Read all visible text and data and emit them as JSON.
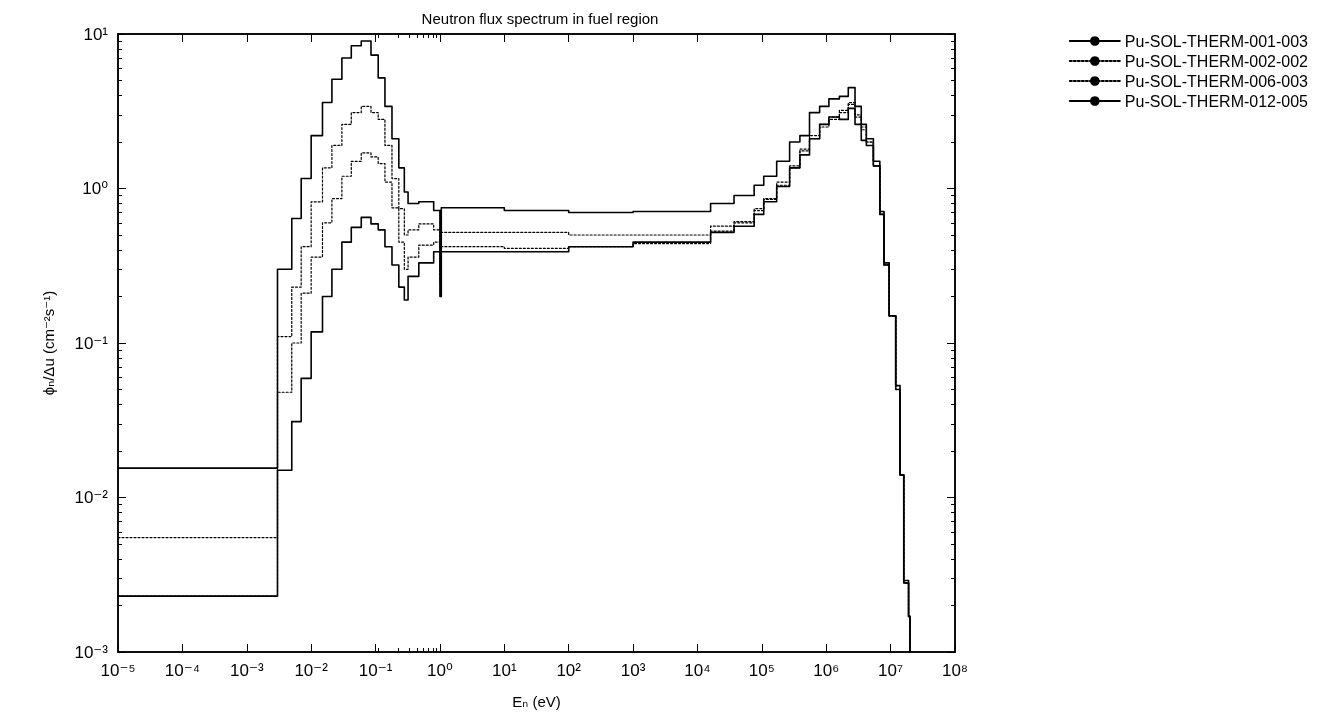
{
  "chart_data": {
    "type": "step",
    "title": "Neutron flux spectrum in fuel region",
    "xlabel": "Eₙ (eV)",
    "ylabel": "ϕₙ/Δu (cm⁻²s⁻¹)",
    "log": "xy",
    "grid": false,
    "legend": "top right",
    "marker": "none",
    "xlim": [
      1e-05,
      100000000
    ],
    "ylim": [
      0.001,
      10
    ],
    "xticks": [
      {
        "value": 1e-05,
        "label": "10⁻⁵"
      },
      {
        "value": 0.0001,
        "label": "10⁻⁴"
      },
      {
        "value": 0.001,
        "label": "10⁻³"
      },
      {
        "value": 0.01,
        "label": "10⁻²"
      },
      {
        "value": 0.1,
        "label": "10⁻¹"
      },
      {
        "value": 1,
        "label": "10⁰"
      },
      {
        "value": 10,
        "label": "10¹"
      },
      {
        "value": 100,
        "label": "10²"
      },
      {
        "value": 1000,
        "label": "10³"
      },
      {
        "value": 10000,
        "label": "10⁴"
      },
      {
        "value": 100000,
        "label": "10⁵"
      },
      {
        "value": 1000000,
        "label": "10⁶"
      },
      {
        "value": 10000000,
        "label": "10⁷"
      },
      {
        "value": 100000000,
        "label": "10⁸"
      }
    ],
    "yticks": [
      {
        "value": 0.001,
        "label": "10⁻³"
      },
      {
        "value": 0.01,
        "label": "10⁻²"
      },
      {
        "value": 0.1,
        "label": "10⁻¹"
      },
      {
        "value": 1,
        "label": "10⁰"
      },
      {
        "value": 10,
        "label": "10¹"
      }
    ],
    "x": [
      1e-05,
      0.003,
      0.005,
      0.007,
      0.01,
      0.015,
      0.021,
      0.03,
      0.042,
      0.06,
      0.085,
      0.11,
      0.14,
      0.18,
      0.23,
      0.28,
      0.32,
      0.47,
      0.8,
      1.0,
      1.05,
      10,
      100,
      1000,
      16000,
      37000,
      76000,
      107000,
      170000,
      270000,
      390000,
      550000,
      790000,
      1100000,
      1600000,
      2200000,
      2800000,
      3500000,
      4200000,
      5400000,
      6800000,
      7900000,
      9500000,
      12000000,
      14000000,
      16000000,
      19000000,
      20000000
    ],
    "series": [
      {
        "name": "Pu-SOL-THERM-001-003",
        "color": "#000000",
        "line_style": "solid",
        "values": [
          0.0155,
          0.3,
          0.64,
          1.16,
          2.2,
          3.6,
          5.1,
          7.0,
          8.4,
          9.0,
          7.3,
          5.2,
          3.4,
          2.1,
          1.36,
          0.95,
          0.8,
          0.82,
          0.72,
          0.4,
          0.75,
          0.72,
          0.7,
          0.71,
          0.8,
          0.9,
          1.05,
          1.2,
          1.5,
          2.0,
          2.2,
          3.1,
          3.4,
          3.8,
          3.95,
          4.5,
          3.4,
          2.6,
          2.1,
          1.5,
          0.71,
          0.33,
          0.15,
          0.053,
          0.014,
          0.0029,
          0.0017,
          0.001
        ]
      },
      {
        "name": "Pu-SOL-THERM-002-002",
        "color": "#000000",
        "line_style": "dotted",
        "values": [
          0.0055,
          0.11,
          0.23,
          0.42,
          0.82,
          1.36,
          1.9,
          2.6,
          3.1,
          3.4,
          3.1,
          2.8,
          1.9,
          1.16,
          0.74,
          0.5,
          0.54,
          0.59,
          0.54,
          0.3,
          0.52,
          0.52,
          0.5,
          0.5,
          0.57,
          0.61,
          0.74,
          0.86,
          1.05,
          1.36,
          1.75,
          2.1,
          2.6,
          2.8,
          3.1,
          3.5,
          2.9,
          2.4,
          2.0,
          1.4,
          0.68,
          0.32,
          0.15,
          0.05,
          0.014,
          0.0028,
          0.0017,
          0.001
        ]
      },
      {
        "name": "Pu-SOL-THERM-006-003",
        "color": "#000000",
        "line_style": "dotted",
        "values": [
          0.0023,
          0.048,
          0.1,
          0.21,
          0.36,
          0.6,
          0.86,
          1.2,
          1.5,
          1.7,
          1.6,
          1.45,
          1.1,
          0.75,
          0.45,
          0.3,
          0.36,
          0.43,
          0.45,
          0.25,
          0.42,
          0.41,
          0.42,
          0.44,
          0.53,
          0.6,
          0.72,
          0.85,
          1.1,
          1.4,
          1.8,
          2.2,
          2.5,
          2.9,
          3.2,
          3.6,
          3.0,
          2.5,
          2.0,
          1.4,
          0.68,
          0.32,
          0.15,
          0.05,
          0.014,
          0.0028,
          0.0017,
          0.001
        ]
      },
      {
        "name": "Pu-SOL-THERM-012-005",
        "color": "#000000",
        "line_style": "solid",
        "values": [
          0.0023,
          0.015,
          0.031,
          0.059,
          0.118,
          0.2,
          0.3,
          0.45,
          0.56,
          0.65,
          0.59,
          0.54,
          0.42,
          0.32,
          0.23,
          0.19,
          0.27,
          0.33,
          0.39,
          0.2,
          0.39,
          0.39,
          0.42,
          0.45,
          0.52,
          0.57,
          0.68,
          0.82,
          1.03,
          1.36,
          1.65,
          2.1,
          2.6,
          2.9,
          2.8,
          3.3,
          2.6,
          2.05,
          1.9,
          1.4,
          0.68,
          0.32,
          0.15,
          0.05,
          0.014,
          0.0028,
          0.0017,
          0.001
        ]
      }
    ]
  }
}
